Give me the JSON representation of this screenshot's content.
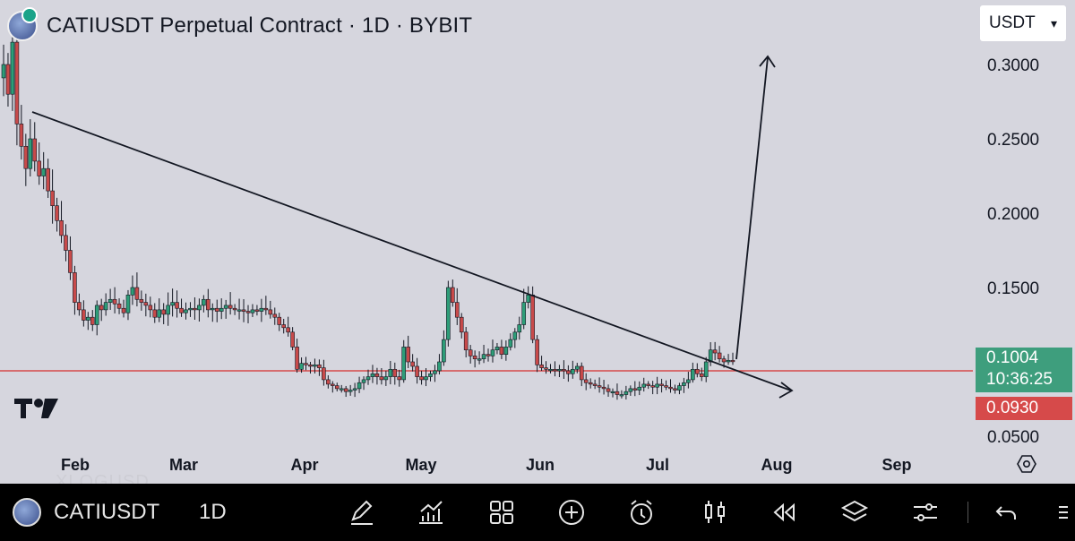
{
  "header": {
    "title": "CATIUSDT Perpetual Contract · 1D · BYBIT",
    "currency": "USDT"
  },
  "price_tags": {
    "last_price": "0.1004",
    "countdown": "10:36:25",
    "marked_level": "0.0930"
  },
  "toolbar": {
    "symbol": "CATIUSDT",
    "interval": "1D",
    "ghost_text": "XLOGUSD",
    "icons": [
      "drawing-pen-icon",
      "indicators-icon",
      "layout-grid-icon",
      "add-icon",
      "alert-clock-icon",
      "candles-icon",
      "replay-icon",
      "layers-icon",
      "settings-sliders-icon",
      "undo-icon",
      "more-icon"
    ]
  },
  "colors": {
    "background": "#d6d6de",
    "up": "#2d9d78",
    "down": "#c84a4a",
    "level_line": "#d64a4a",
    "last_price_tag": "#3e9e7d"
  },
  "chart_data": {
    "type": "candlestick",
    "title": "CATIUSDT Perpetual Contract · 1D · BYBIT",
    "x_ticks": [
      "Feb",
      "Mar",
      "Apr",
      "May",
      "Jun",
      "Jul",
      "Aug",
      "Sep"
    ],
    "y_ticks": [
      "0.3000",
      "0.2500",
      "0.2000",
      "0.1500",
      "0.0500"
    ],
    "ylim": [
      0.03,
      0.33
    ],
    "horizontal_level": 0.093,
    "closes": [
      0.3,
      0.28,
      0.315,
      0.26,
      0.245,
      0.23,
      0.25,
      0.235,
      0.225,
      0.23,
      0.215,
      0.205,
      0.195,
      0.185,
      0.175,
      0.16,
      0.14,
      0.135,
      0.128,
      0.13,
      0.125,
      0.138,
      0.135,
      0.14,
      0.142,
      0.139,
      0.136,
      0.133,
      0.145,
      0.15,
      0.142,
      0.14,
      0.138,
      0.135,
      0.13,
      0.135,
      0.132,
      0.138,
      0.14,
      0.136,
      0.133,
      0.135,
      0.136,
      0.135,
      0.138,
      0.142,
      0.135,
      0.136,
      0.134,
      0.136,
      0.138,
      0.136,
      0.135,
      0.135,
      0.134,
      0.133,
      0.135,
      0.134,
      0.136,
      0.135,
      0.132,
      0.13,
      0.125,
      0.123,
      0.12,
      0.11,
      0.095,
      0.099,
      0.098,
      0.097,
      0.098,
      0.096,
      0.088,
      0.085,
      0.084,
      0.082,
      0.082,
      0.08,
      0.081,
      0.082,
      0.086,
      0.088,
      0.09,
      0.092,
      0.09,
      0.088,
      0.09,
      0.095,
      0.09,
      0.088,
      0.11,
      0.1,
      0.097,
      0.09,
      0.088,
      0.09,
      0.092,
      0.094,
      0.1,
      0.115,
      0.15,
      0.14,
      0.13,
      0.12,
      0.108,
      0.104,
      0.102,
      0.102,
      0.105,
      0.104,
      0.108,
      0.11,
      0.105,
      0.11,
      0.115,
      0.12,
      0.125,
      0.14,
      0.145,
      0.115,
      0.098,
      0.096,
      0.095,
      0.095,
      0.094,
      0.095,
      0.094,
      0.092,
      0.095,
      0.097,
      0.088,
      0.086,
      0.085,
      0.084,
      0.083,
      0.082,
      0.08,
      0.08,
      0.078,
      0.078,
      0.08,
      0.082,
      0.081,
      0.083,
      0.085,
      0.084,
      0.083,
      0.085,
      0.084,
      0.083,
      0.082,
      0.081,
      0.084,
      0.086,
      0.088,
      0.095,
      0.092,
      0.09,
      0.1,
      0.108,
      0.106,
      0.102,
      0.1,
      0.101,
      0.1004
    ]
  }
}
